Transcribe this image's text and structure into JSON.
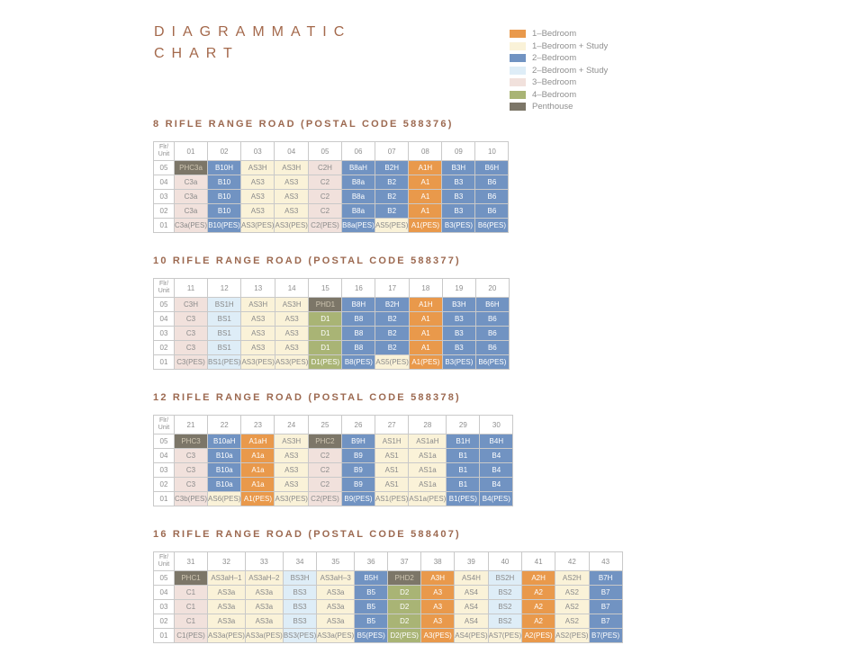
{
  "title": {
    "line1": "DIAGRAMMATIC",
    "line2": "CHART"
  },
  "labels": {
    "flr": "Flr/",
    "unit": "Unit"
  },
  "legend": [
    {
      "key": "1br",
      "label": "1–Bedroom",
      "color": "#E9994B"
    },
    {
      "key": "1brs",
      "label": "1–Bedroom + Study",
      "color": "#FAF2D8"
    },
    {
      "key": "2br",
      "label": "2–Bedroom",
      "color": "#7193C2"
    },
    {
      "key": "2brs",
      "label": "2–Bedroom + Study",
      "color": "#DEEDF7"
    },
    {
      "key": "3br",
      "label": "3–Bedroom",
      "color": "#F1E1DC"
    },
    {
      "key": "4br",
      "label": "4–Bedroom",
      "color": "#A9B475"
    },
    {
      "key": "ph",
      "label": "Penthouse",
      "color": "#7C7668"
    }
  ],
  "buildings": [
    {
      "title": "8 RIFLE RANGE ROAD (POSTAL CODE 588376)",
      "units": [
        "01",
        "02",
        "03",
        "04",
        "05",
        "06",
        "07",
        "08",
        "09",
        "10"
      ],
      "floors": [
        {
          "floor": "05",
          "cells": [
            "PHC3a",
            "B10H",
            "AS3H",
            "AS3H",
            "C2H",
            "B8aH",
            "B2H",
            "A1H",
            "B3H",
            "B6H"
          ]
        },
        {
          "floor": "04",
          "cells": [
            "C3a",
            "B10",
            "AS3",
            "AS3",
            "C2",
            "B8a",
            "B2",
            "A1",
            "B3",
            "B6"
          ]
        },
        {
          "floor": "03",
          "cells": [
            "C3a",
            "B10",
            "AS3",
            "AS3",
            "C2",
            "B8a",
            "B2",
            "A1",
            "B3",
            "B6"
          ]
        },
        {
          "floor": "02",
          "cells": [
            "C3a",
            "B10",
            "AS3",
            "AS3",
            "C2",
            "B8a",
            "B2",
            "A1",
            "B3",
            "B6"
          ]
        },
        {
          "floor": "01",
          "cells": [
            "C3a(PES)",
            "B10(PES)",
            "AS3(PES)",
            "AS3(PES)",
            "C2(PES)",
            "B8a(PES)",
            "AS5(PES)",
            "A1(PES)",
            "B3(PES)",
            "B6(PES)"
          ]
        }
      ]
    },
    {
      "title": "10 RIFLE RANGE ROAD (POSTAL CODE 588377)",
      "units": [
        "11",
        "12",
        "13",
        "14",
        "15",
        "16",
        "17",
        "18",
        "19",
        "20"
      ],
      "floors": [
        {
          "floor": "05",
          "cells": [
            "C3H",
            "BS1H",
            "AS3H",
            "AS3H",
            "PHD1",
            "B8H",
            "B2H",
            "A1H",
            "B3H",
            "B6H"
          ]
        },
        {
          "floor": "04",
          "cells": [
            "C3",
            "BS1",
            "AS3",
            "AS3",
            "D1",
            "B8",
            "B2",
            "A1",
            "B3",
            "B6"
          ]
        },
        {
          "floor": "03",
          "cells": [
            "C3",
            "BS1",
            "AS3",
            "AS3",
            "D1",
            "B8",
            "B2",
            "A1",
            "B3",
            "B6"
          ]
        },
        {
          "floor": "02",
          "cells": [
            "C3",
            "BS1",
            "AS3",
            "AS3",
            "D1",
            "B8",
            "B2",
            "A1",
            "B3",
            "B6"
          ]
        },
        {
          "floor": "01",
          "cells": [
            "C3(PES)",
            "BS1(PES)",
            "AS3(PES)",
            "AS3(PES)",
            "D1(PES)",
            "B8(PES)",
            "AS5(PES)",
            "A1(PES)",
            "B3(PES)",
            "B6(PES)"
          ]
        }
      ]
    },
    {
      "title": "12 RIFLE RANGE ROAD (POSTAL CODE 588378)",
      "units": [
        "21",
        "22",
        "23",
        "24",
        "25",
        "26",
        "27",
        "28",
        "29",
        "30"
      ],
      "floors": [
        {
          "floor": "05",
          "cells": [
            "PHC3",
            "B10aH",
            "A1aH",
            "AS3H",
            "PHC2",
            "B9H",
            "AS1H",
            "AS1aH",
            "B1H",
            "B4H"
          ]
        },
        {
          "floor": "04",
          "cells": [
            "C3",
            "B10a",
            "A1a",
            "AS3",
            "C2",
            "B9",
            "AS1",
            "AS1a",
            "B1",
            "B4"
          ]
        },
        {
          "floor": "03",
          "cells": [
            "C3",
            "B10a",
            "A1a",
            "AS3",
            "C2",
            "B9",
            "AS1",
            "AS1a",
            "B1",
            "B4"
          ]
        },
        {
          "floor": "02",
          "cells": [
            "C3",
            "B10a",
            "A1a",
            "AS3",
            "C2",
            "B9",
            "AS1",
            "AS1a",
            "B1",
            "B4"
          ]
        },
        {
          "floor": "01",
          "cells": [
            "C3b(PES)",
            "AS6(PES)",
            "A1(PES)",
            "AS3(PES)",
            "C2(PES)",
            "B9(PES)",
            "AS1(PES)",
            "AS1a(PES)",
            "B1(PES)",
            "B4(PES)"
          ]
        }
      ]
    },
    {
      "title": "16 RIFLE RANGE ROAD (POSTAL CODE 588407)",
      "units": [
        "31",
        "32",
        "33",
        "34",
        "35",
        "36",
        "37",
        "38",
        "39",
        "40",
        "41",
        "42",
        "43"
      ],
      "floors": [
        {
          "floor": "05",
          "cells": [
            "PHC1",
            "AS3aH–1",
            "AS3aH–2",
            "BS3H",
            "AS3aH–3",
            "B5H",
            "PHD2",
            "A3H",
            "AS4H",
            "BS2H",
            "A2H",
            "AS2H",
            "B7H"
          ]
        },
        {
          "floor": "04",
          "cells": [
            "C1",
            "AS3a",
            "AS3a",
            "BS3",
            "AS3a",
            "B5",
            "D2",
            "A3",
            "AS4",
            "BS2",
            "A2",
            "AS2",
            "B7"
          ]
        },
        {
          "floor": "03",
          "cells": [
            "C1",
            "AS3a",
            "AS3a",
            "BS3",
            "AS3a",
            "B5",
            "D2",
            "A3",
            "AS4",
            "BS2",
            "A2",
            "AS2",
            "B7"
          ]
        },
        {
          "floor": "02",
          "cells": [
            "C1",
            "AS3a",
            "AS3a",
            "BS3",
            "AS3a",
            "B5",
            "D2",
            "A3",
            "AS4",
            "BS2",
            "A2",
            "AS2",
            "B7"
          ]
        },
        {
          "floor": "01",
          "cells": [
            "C1(PES)",
            "AS3a(PES)",
            "AS3a(PES)",
            "BS3(PES)",
            "AS3a(PES)",
            "B5(PES)",
            "D2(PES)",
            "A3(PES)",
            "AS4(PES)",
            "AS7(PES)",
            "A2(PES)",
            "AS2(PES)",
            "B7(PES)"
          ]
        }
      ]
    }
  ]
}
